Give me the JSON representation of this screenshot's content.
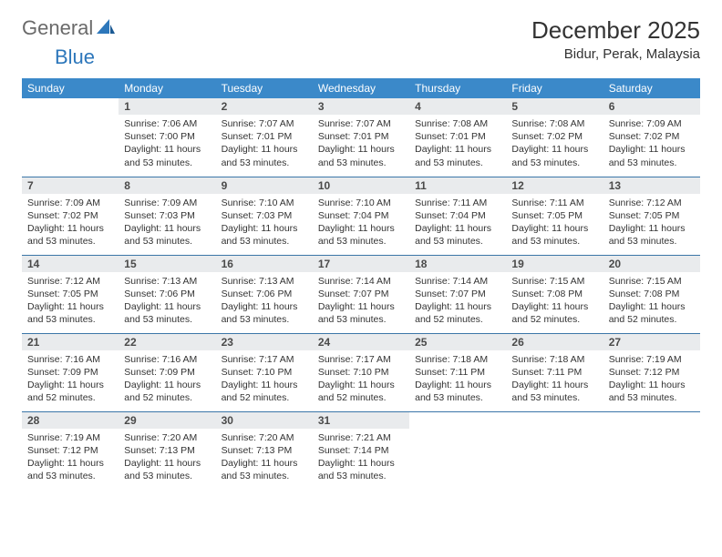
{
  "brand": {
    "text1": "General",
    "text2": "Blue"
  },
  "title": "December 2025",
  "location": "Bidur, Perak, Malaysia",
  "colors": {
    "header_bg": "#3b89c9",
    "header_text": "#ffffff",
    "daynum_bg": "#e9ebed",
    "daynum_text": "#4a4a4a",
    "body_text": "#333333",
    "row_border": "#3b76a8",
    "logo_gray": "#6a6a6a",
    "logo_blue": "#2d77bb"
  },
  "typography": {
    "title_fontsize": 26,
    "location_fontsize": 15,
    "dayheader_fontsize": 12,
    "daynum_fontsize": 12,
    "body_fontsize": 10.5
  },
  "calendar": {
    "type": "table",
    "day_headers": [
      "Sunday",
      "Monday",
      "Tuesday",
      "Wednesday",
      "Thursday",
      "Friday",
      "Saturday"
    ],
    "start_weekday": 1,
    "days": [
      {
        "n": 1,
        "sunrise": "7:06 AM",
        "sunset": "7:00 PM",
        "daylight": "11 hours and 53 minutes."
      },
      {
        "n": 2,
        "sunrise": "7:07 AM",
        "sunset": "7:01 PM",
        "daylight": "11 hours and 53 minutes."
      },
      {
        "n": 3,
        "sunrise": "7:07 AM",
        "sunset": "7:01 PM",
        "daylight": "11 hours and 53 minutes."
      },
      {
        "n": 4,
        "sunrise": "7:08 AM",
        "sunset": "7:01 PM",
        "daylight": "11 hours and 53 minutes."
      },
      {
        "n": 5,
        "sunrise": "7:08 AM",
        "sunset": "7:02 PM",
        "daylight": "11 hours and 53 minutes."
      },
      {
        "n": 6,
        "sunrise": "7:09 AM",
        "sunset": "7:02 PM",
        "daylight": "11 hours and 53 minutes."
      },
      {
        "n": 7,
        "sunrise": "7:09 AM",
        "sunset": "7:02 PM",
        "daylight": "11 hours and 53 minutes."
      },
      {
        "n": 8,
        "sunrise": "7:09 AM",
        "sunset": "7:03 PM",
        "daylight": "11 hours and 53 minutes."
      },
      {
        "n": 9,
        "sunrise": "7:10 AM",
        "sunset": "7:03 PM",
        "daylight": "11 hours and 53 minutes."
      },
      {
        "n": 10,
        "sunrise": "7:10 AM",
        "sunset": "7:04 PM",
        "daylight": "11 hours and 53 minutes."
      },
      {
        "n": 11,
        "sunrise": "7:11 AM",
        "sunset": "7:04 PM",
        "daylight": "11 hours and 53 minutes."
      },
      {
        "n": 12,
        "sunrise": "7:11 AM",
        "sunset": "7:05 PM",
        "daylight": "11 hours and 53 minutes."
      },
      {
        "n": 13,
        "sunrise": "7:12 AM",
        "sunset": "7:05 PM",
        "daylight": "11 hours and 53 minutes."
      },
      {
        "n": 14,
        "sunrise": "7:12 AM",
        "sunset": "7:05 PM",
        "daylight": "11 hours and 53 minutes."
      },
      {
        "n": 15,
        "sunrise": "7:13 AM",
        "sunset": "7:06 PM",
        "daylight": "11 hours and 53 minutes."
      },
      {
        "n": 16,
        "sunrise": "7:13 AM",
        "sunset": "7:06 PM",
        "daylight": "11 hours and 53 minutes."
      },
      {
        "n": 17,
        "sunrise": "7:14 AM",
        "sunset": "7:07 PM",
        "daylight": "11 hours and 53 minutes."
      },
      {
        "n": 18,
        "sunrise": "7:14 AM",
        "sunset": "7:07 PM",
        "daylight": "11 hours and 52 minutes."
      },
      {
        "n": 19,
        "sunrise": "7:15 AM",
        "sunset": "7:08 PM",
        "daylight": "11 hours and 52 minutes."
      },
      {
        "n": 20,
        "sunrise": "7:15 AM",
        "sunset": "7:08 PM",
        "daylight": "11 hours and 52 minutes."
      },
      {
        "n": 21,
        "sunrise": "7:16 AM",
        "sunset": "7:09 PM",
        "daylight": "11 hours and 52 minutes."
      },
      {
        "n": 22,
        "sunrise": "7:16 AM",
        "sunset": "7:09 PM",
        "daylight": "11 hours and 52 minutes."
      },
      {
        "n": 23,
        "sunrise": "7:17 AM",
        "sunset": "7:10 PM",
        "daylight": "11 hours and 52 minutes."
      },
      {
        "n": 24,
        "sunrise": "7:17 AM",
        "sunset": "7:10 PM",
        "daylight": "11 hours and 52 minutes."
      },
      {
        "n": 25,
        "sunrise": "7:18 AM",
        "sunset": "7:11 PM",
        "daylight": "11 hours and 53 minutes."
      },
      {
        "n": 26,
        "sunrise": "7:18 AM",
        "sunset": "7:11 PM",
        "daylight": "11 hours and 53 minutes."
      },
      {
        "n": 27,
        "sunrise": "7:19 AM",
        "sunset": "7:12 PM",
        "daylight": "11 hours and 53 minutes."
      },
      {
        "n": 28,
        "sunrise": "7:19 AM",
        "sunset": "7:12 PM",
        "daylight": "11 hours and 53 minutes."
      },
      {
        "n": 29,
        "sunrise": "7:20 AM",
        "sunset": "7:13 PM",
        "daylight": "11 hours and 53 minutes."
      },
      {
        "n": 30,
        "sunrise": "7:20 AM",
        "sunset": "7:13 PM",
        "daylight": "11 hours and 53 minutes."
      },
      {
        "n": 31,
        "sunrise": "7:21 AM",
        "sunset": "7:14 PM",
        "daylight": "11 hours and 53 minutes."
      }
    ],
    "labels": {
      "sunrise": "Sunrise:",
      "sunset": "Sunset:",
      "daylight": "Daylight:"
    }
  }
}
